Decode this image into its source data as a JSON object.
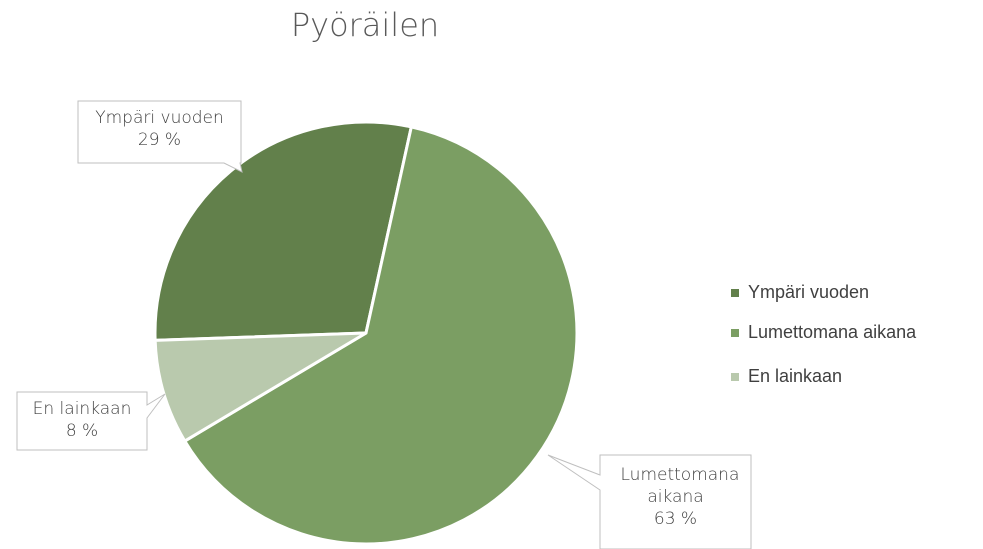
{
  "chart_data": {
    "type": "pie",
    "title": "Pyöräilen",
    "categories": [
      "Ympäri vuoden",
      "Lumettomana aikana",
      "En lainkaan"
    ],
    "values": [
      29,
      63,
      8
    ],
    "value_labels": [
      "29 %",
      "63 %",
      "8 %"
    ],
    "colors": [
      "#62804b",
      "#7b9e63",
      "#b9c9ad"
    ],
    "legend": "right"
  }
}
